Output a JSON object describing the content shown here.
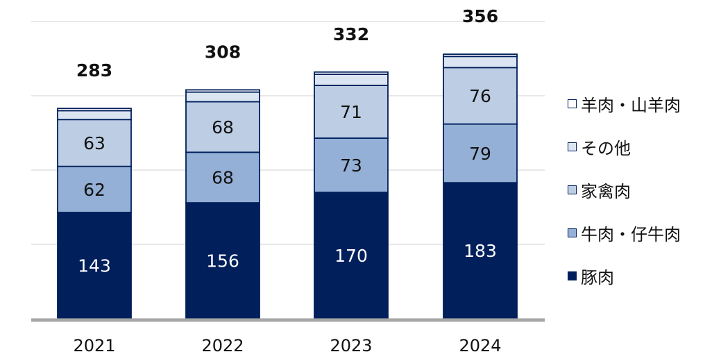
{
  "chart_data": {
    "type": "bar",
    "stacked": true,
    "categories": [
      "2021",
      "2022",
      "2023",
      "2024"
    ],
    "series": [
      {
        "name": "豚肉",
        "values": [
          143,
          156,
          170,
          183
        ],
        "color": "#001f5b",
        "label_color": "#ffffff"
      },
      {
        "name": "牛肉・仔牛肉",
        "values": [
          62,
          68,
          73,
          79
        ],
        "color": "#94b0d6",
        "label_color": "#111111"
      },
      {
        "name": "家禽肉",
        "values": [
          63,
          68,
          71,
          76
        ],
        "color": "#bccde4",
        "label_color": "#111111"
      },
      {
        "name": "その他",
        "values": [
          12,
          13,
          15,
          15
        ],
        "color": "#dbe5f2",
        "label_color": "#111111"
      },
      {
        "name": "羊肉・山羊肉",
        "values": [
          3,
          3,
          3,
          3
        ],
        "color": "#ffffff",
        "label_color": "#111111"
      }
    ],
    "totals": [
      283,
      308,
      332,
      356
    ],
    "labeled_series": [
      "豚肉",
      "牛肉・仔牛肉",
      "家禽肉"
    ],
    "ylim": [
      0,
      400
    ],
    "gridlines": [
      100,
      200,
      300,
      400
    ],
    "grid": true,
    "legend_position": "right",
    "legend_order": [
      "羊肉・山羊肉",
      "その他",
      "家禽肉",
      "牛肉・仔牛肉",
      "豚肉"
    ],
    "title": "",
    "xlabel": "",
    "ylabel": ""
  }
}
